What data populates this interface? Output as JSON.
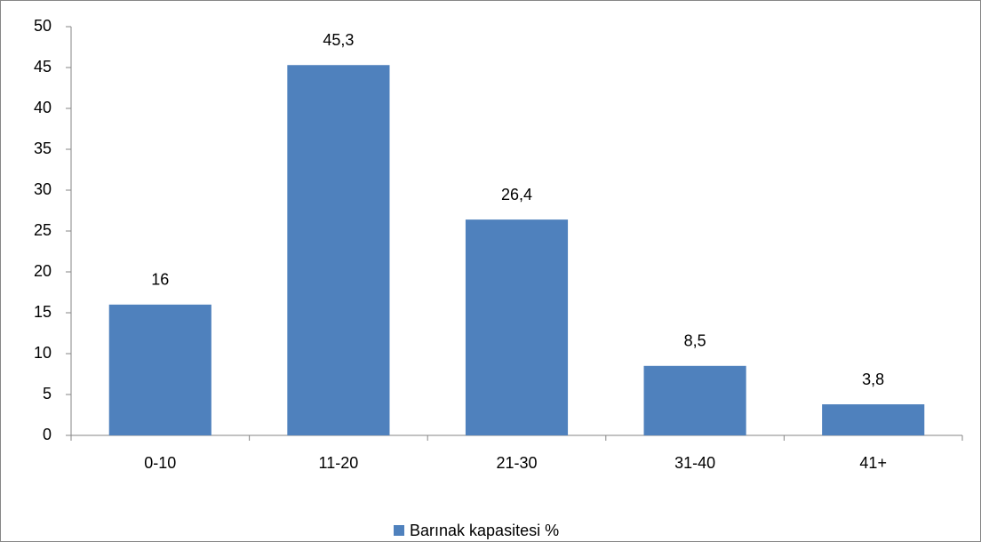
{
  "chart_data": {
    "type": "bar",
    "categories": [
      "0-10",
      "11-20",
      "21-30",
      "31-40",
      "41+"
    ],
    "series": [
      {
        "name": "Barınak kapasitesi %",
        "color": "#4f81bd",
        "values": [
          16,
          45.3,
          26.4,
          8.5,
          3.8
        ],
        "value_labels": [
          "16",
          "45,3",
          "26,4",
          "8,5",
          "3,8"
        ]
      }
    ],
    "ylim": [
      0,
      50
    ],
    "yticks": [
      0,
      5,
      10,
      15,
      20,
      25,
      30,
      35,
      40,
      45,
      50
    ],
    "grid": false,
    "legend": "bottom"
  }
}
